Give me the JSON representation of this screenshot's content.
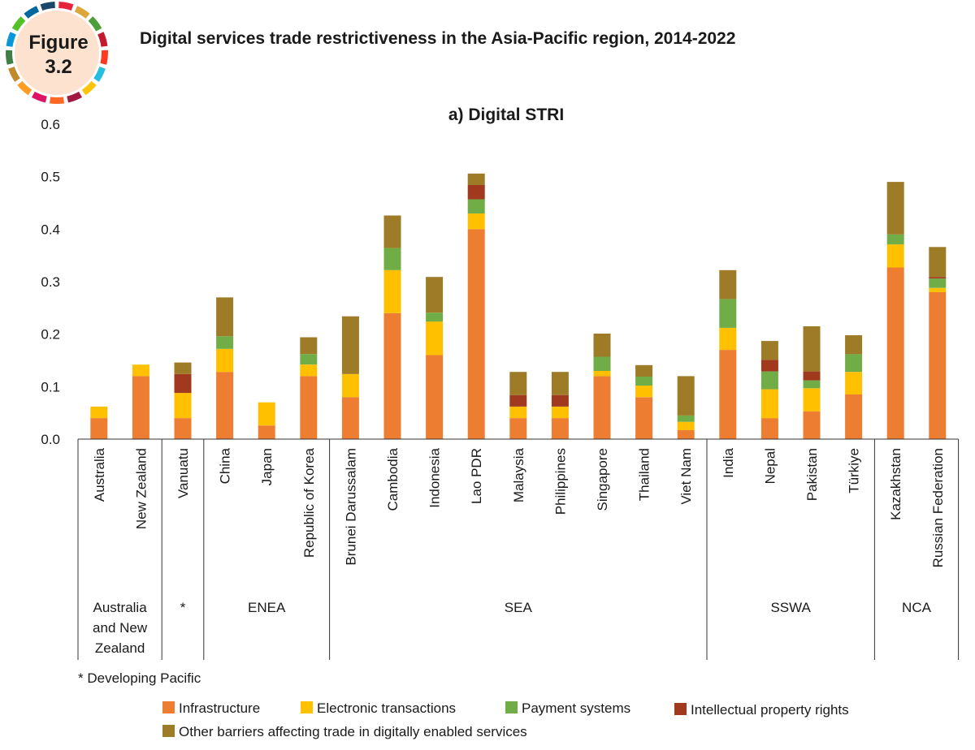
{
  "figure": {
    "badge_line1": "Figure",
    "badge_line2": "3.2",
    "title": "Digital services trade restrictiveness in the Asia-Pacific region, 2014-2022",
    "badge_ring_colors": [
      "#e5243b",
      "#dda63a",
      "#4c9f38",
      "#c5192d",
      "#ff3a21",
      "#26bde2",
      "#fcc30b",
      "#a21942",
      "#fd6925",
      "#dd1367",
      "#fd9d24",
      "#bf8b2e",
      "#3f7e44",
      "#0a97d9",
      "#56c02b",
      "#00689d",
      "#19486a"
    ],
    "badge_fill": "#fde3cf"
  },
  "chart_data": {
    "type": "bar",
    "stacked": true,
    "title": "a) Digital STRI",
    "xlabel": "",
    "ylabel": "",
    "ylim": [
      0,
      0.6
    ],
    "yticks": [
      "0.0",
      "0.1",
      "0.2",
      "0.3",
      "0.4",
      "0.5",
      "0.6"
    ],
    "grid": false,
    "categories": [
      "Australia",
      "New Zealand",
      "Vanuatu",
      "China",
      "Japan",
      "Republic of Korea",
      "Brunei Darussalam",
      "Cambodia",
      "Indonesia",
      "Lao PDR",
      "Malaysia",
      "Philippines",
      "Singapore",
      "Thailand",
      "Viet Nam",
      "India",
      "Nepal",
      "Pakistan",
      "Türkiye",
      "Kazakhstan",
      "Russian Federation"
    ],
    "series": [
      {
        "name": "Infrastructure",
        "color": "#ed7d31",
        "values": [
          0.04,
          0.12,
          0.04,
          0.128,
          0.026,
          0.12,
          0.08,
          0.24,
          0.16,
          0.4,
          0.04,
          0.04,
          0.12,
          0.08,
          0.017,
          0.17,
          0.04,
          0.053,
          0.085,
          0.327,
          0.28
        ]
      },
      {
        "name": "Electronic transactions",
        "color": "#ffc000",
        "values": [
          0.022,
          0.022,
          0.048,
          0.044,
          0.044,
          0.022,
          0.044,
          0.082,
          0.064,
          0.03,
          0.022,
          0.022,
          0.01,
          0.022,
          0.016,
          0.042,
          0.055,
          0.044,
          0.043,
          0.044,
          0.008
        ]
      },
      {
        "name": "Payment systems",
        "color": "#70ad47",
        "values": [
          0,
          0,
          0,
          0.024,
          0,
          0.02,
          0,
          0.042,
          0.017,
          0.027,
          0,
          0,
          0.027,
          0.017,
          0.012,
          0.055,
          0.034,
          0.015,
          0.034,
          0.019,
          0.018
        ]
      },
      {
        "name": "Intellectual property rights",
        "color": "#a0391e",
        "values": [
          0,
          0,
          0.036,
          0,
          0,
          0,
          0,
          0,
          0,
          0.027,
          0.022,
          0.022,
          0,
          0,
          0,
          0,
          0.022,
          0.017,
          0,
          0,
          0.003
        ]
      },
      {
        "name": "Other barriers affecting trade in digitally enabled services",
        "color": "#9d7b27",
        "values": [
          0,
          0,
          0.022,
          0.074,
          0,
          0.032,
          0.11,
          0.062,
          0.068,
          0.022,
          0.044,
          0.044,
          0.044,
          0.022,
          0.075,
          0.055,
          0.036,
          0.086,
          0.036,
          0.1,
          0.057
        ]
      }
    ],
    "groups": [
      {
        "label": "Australia and New Zealand",
        "lines": [
          "Australia",
          "and New",
          "Zealand"
        ],
        "start": 0,
        "end": 1
      },
      {
        "label": "*",
        "lines": [
          "*"
        ],
        "start": 2,
        "end": 2
      },
      {
        "label": "ENEA",
        "lines": [
          "ENEA"
        ],
        "start": 3,
        "end": 5
      },
      {
        "label": "SEA",
        "lines": [
          "SEA"
        ],
        "start": 6,
        "end": 14
      },
      {
        "label": "SSWA",
        "lines": [
          "SSWA"
        ],
        "start": 15,
        "end": 18
      },
      {
        "label": "NCA",
        "lines": [
          "NCA"
        ],
        "start": 19,
        "end": 20
      }
    ],
    "footnote": "*  Developing Pacific",
    "legend_position": "bottom"
  }
}
